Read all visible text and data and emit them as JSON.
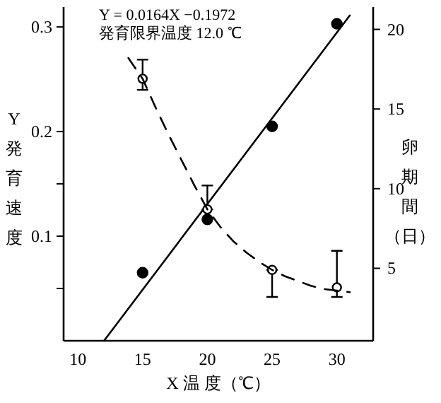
{
  "chart_data": {
    "type": "scatter",
    "xlabel": "X 温 度（℃）",
    "ylabel": "Y 発育速度",
    "y2label": "卵期間（日）",
    "annotations": [
      "Y = 0.0164X −0.1972",
      "発育限界温度 12.0 ℃"
    ],
    "xlim": [
      8.9,
      32.8
    ],
    "xticks": [
      10,
      15,
      20,
      25,
      30
    ],
    "ylim": [
      0,
      0.319
    ],
    "yticks": [
      {
        "value": 0.05,
        "label": null
      },
      0.1,
      {
        "value": 0.15,
        "label": null
      },
      0.2,
      0.3
    ],
    "y2lim": [
      0.45,
      21.4
    ],
    "y2ticks": [
      5,
      10,
      15,
      20
    ],
    "marker": "circle",
    "series": [
      {
        "color": "#000000",
        "x": [
          15,
          20,
          25,
          30
        ],
        "values": [
          0.065,
          0.116,
          0.205,
          0.303
        ]
      },
      {
        "type": "line",
        "color": "#000000",
        "line_style": "solid",
        "marker": "none",
        "x": [
          12.02,
          31
        ],
        "values": [
          0,
          0.311
        ]
      },
      {
        "axis": "y2",
        "color": "#000000",
        "x": [
          15,
          20,
          25,
          30
        ],
        "values": [
          16.9,
          8.7,
          4.9,
          3.8
        ],
        "errors": [
          [
            16.2,
            18.1
          ],
          [
            8.7,
            10.2
          ],
          [
            3.2,
            4.9
          ],
          [
            3.2,
            6.1
          ]
        ]
      },
      {
        "type": "line",
        "axis": "y2",
        "color": "#000000",
        "line_style": "dashed",
        "marker": "none",
        "x": [
          13.9,
          15,
          16,
          17,
          18,
          19,
          20,
          21,
          22,
          23,
          24,
          25,
          26,
          27,
          28,
          29,
          30,
          31
        ],
        "values": [
          18.2,
          16.9,
          15.1,
          13.4,
          11.8,
          10.2,
          8.7,
          7.6,
          6.7,
          6.0,
          5.4,
          4.9,
          4.5,
          4.2,
          3.9,
          3.7,
          3.6,
          3.5
        ]
      }
    ]
  }
}
